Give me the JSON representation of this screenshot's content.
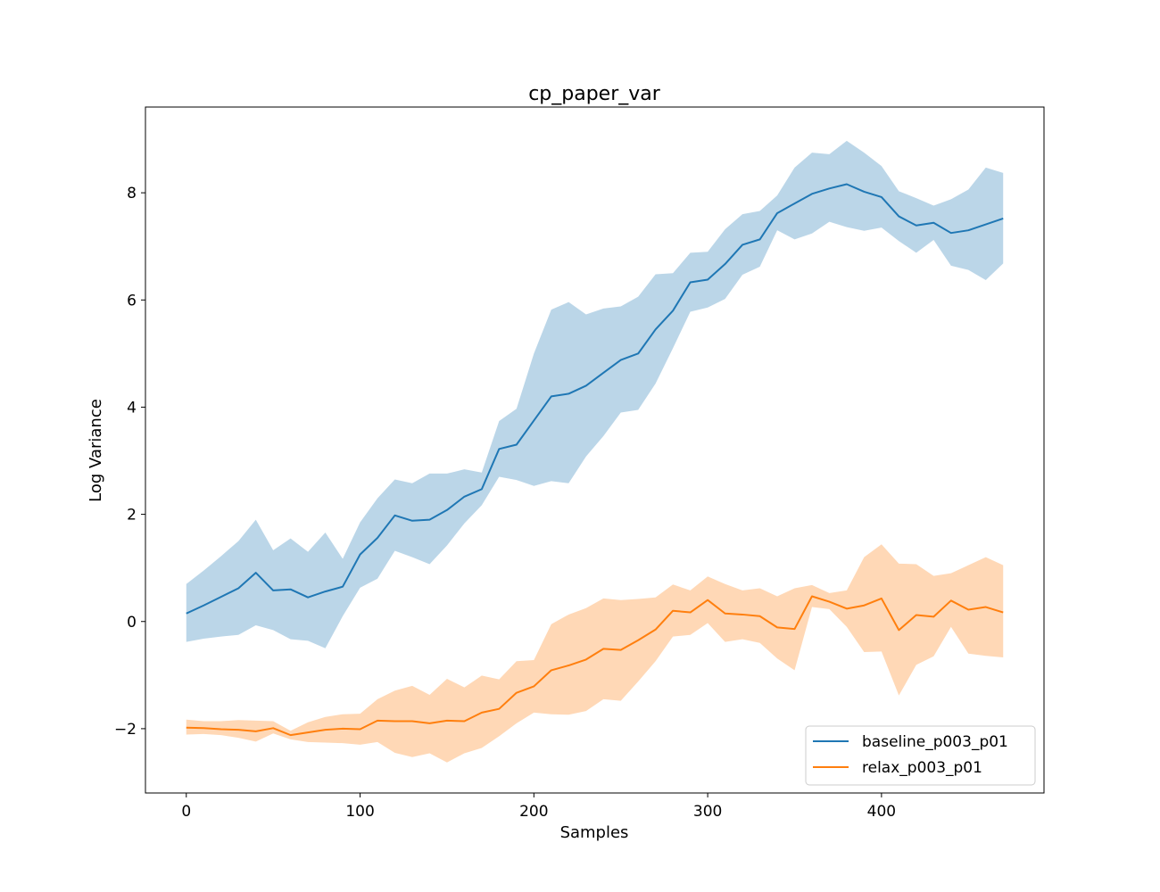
{
  "chart_data": {
    "type": "line",
    "title": "cp_paper_var",
    "xlabel": "Samples",
    "ylabel": "Log Variance",
    "xlim": [
      -23.5,
      493.5
    ],
    "ylim": [
      -3.2,
      9.6
    ],
    "xticks": [
      0,
      100,
      200,
      300,
      400
    ],
    "yticks": [
      -2,
      0,
      2,
      4,
      6,
      8
    ],
    "ytick_labels": [
      "−2",
      "0",
      "2",
      "4",
      "6",
      "8"
    ],
    "grid": false,
    "legend_position": "lower-right",
    "x": [
      0,
      10,
      20,
      30,
      40,
      50,
      60,
      70,
      80,
      90,
      100,
      110,
      120,
      130,
      140,
      150,
      160,
      170,
      180,
      190,
      200,
      210,
      220,
      230,
      240,
      250,
      260,
      270,
      280,
      290,
      300,
      310,
      320,
      330,
      340,
      350,
      360,
      370,
      380,
      390,
      400,
      410,
      420,
      430,
      440,
      450,
      460,
      470
    ],
    "series": [
      {
        "name": "baseline_p003_p01",
        "color": "#1f77b4",
        "band_color": "#1f77b4",
        "values": [
          0.15,
          0.3,
          0.46,
          0.62,
          0.91,
          0.58,
          0.6,
          0.45,
          0.56,
          0.65,
          1.25,
          1.56,
          1.98,
          1.88,
          1.9,
          2.08,
          2.33,
          2.47,
          3.22,
          3.3,
          3.75,
          4.2,
          4.25,
          4.4,
          4.64,
          4.88,
          5.0,
          5.45,
          5.8,
          6.33,
          6.38,
          6.67,
          7.03,
          7.13,
          7.62,
          7.8,
          7.98,
          8.08,
          8.16,
          8.02,
          7.92,
          7.56,
          7.39,
          7.44,
          7.25,
          7.3,
          7.41,
          7.52
        ],
        "upper": [
          0.7,
          0.95,
          1.22,
          1.5,
          1.9,
          1.33,
          1.55,
          1.3,
          1.66,
          1.17,
          1.85,
          2.3,
          2.65,
          2.58,
          2.76,
          2.76,
          2.84,
          2.78,
          3.74,
          3.97,
          5.0,
          5.82,
          5.96,
          5.73,
          5.84,
          5.88,
          6.06,
          6.48,
          6.5,
          6.88,
          6.9,
          7.32,
          7.6,
          7.66,
          7.95,
          8.47,
          8.75,
          8.72,
          8.97,
          8.75,
          8.5,
          8.03,
          7.9,
          7.76,
          7.88,
          8.06,
          8.47,
          8.37
        ],
        "lower": [
          -0.38,
          -0.32,
          -0.28,
          -0.25,
          -0.07,
          -0.16,
          -0.33,
          -0.36,
          -0.5,
          0.1,
          0.63,
          0.8,
          1.32,
          1.2,
          1.07,
          1.42,
          1.83,
          2.17,
          2.7,
          2.64,
          2.53,
          2.62,
          2.58,
          3.08,
          3.46,
          3.9,
          3.95,
          4.44,
          5.1,
          5.78,
          5.86,
          6.02,
          6.47,
          6.62,
          7.3,
          7.13,
          7.24,
          7.46,
          7.36,
          7.29,
          7.35,
          7.1,
          6.88,
          7.12,
          6.64,
          6.56,
          6.37,
          6.68
        ]
      },
      {
        "name": "relax_p003_p01",
        "color": "#ff7f0e",
        "band_color": "#ff7f0e",
        "values": [
          -1.98,
          -1.99,
          -2.01,
          -2.02,
          -2.05,
          -1.99,
          -2.12,
          -2.07,
          -2.02,
          -2.0,
          -2.01,
          -1.85,
          -1.86,
          -1.86,
          -1.9,
          -1.85,
          -1.86,
          -1.7,
          -1.63,
          -1.33,
          -1.21,
          -0.91,
          -0.82,
          -0.71,
          -0.51,
          -0.53,
          -0.35,
          -0.15,
          0.2,
          0.17,
          0.4,
          0.15,
          0.13,
          0.1,
          -0.11,
          -0.14,
          0.47,
          0.37,
          0.24,
          0.3,
          0.43,
          -0.16,
          0.12,
          0.09,
          0.39,
          0.22,
          0.27,
          0.17
        ],
        "upper": [
          -1.83,
          -1.86,
          -1.86,
          -1.84,
          -1.85,
          -1.86,
          -2.04,
          -1.88,
          -1.78,
          -1.73,
          -1.72,
          -1.45,
          -1.29,
          -1.2,
          -1.37,
          -1.07,
          -1.23,
          -1.01,
          -1.08,
          -0.74,
          -0.72,
          -0.05,
          0.13,
          0.25,
          0.43,
          0.4,
          0.42,
          0.45,
          0.69,
          0.58,
          0.84,
          0.7,
          0.58,
          0.62,
          0.47,
          0.62,
          0.68,
          0.53,
          0.58,
          1.2,
          1.44,
          1.08,
          1.07,
          0.85,
          0.9,
          1.05,
          1.2,
          1.05
        ],
        "lower": [
          -2.11,
          -2.1,
          -2.12,
          -2.17,
          -2.24,
          -2.09,
          -2.2,
          -2.25,
          -2.26,
          -2.27,
          -2.3,
          -2.25,
          -2.45,
          -2.53,
          -2.46,
          -2.63,
          -2.46,
          -2.36,
          -2.14,
          -1.9,
          -1.7,
          -1.73,
          -1.74,
          -1.67,
          -1.45,
          -1.48,
          -1.12,
          -0.74,
          -0.28,
          -0.25,
          -0.03,
          -0.38,
          -0.33,
          -0.4,
          -0.69,
          -0.91,
          0.27,
          0.23,
          -0.1,
          -0.57,
          -0.56,
          -1.38,
          -0.81,
          -0.65,
          -0.1,
          -0.6,
          -0.64,
          -0.67
        ]
      }
    ]
  }
}
